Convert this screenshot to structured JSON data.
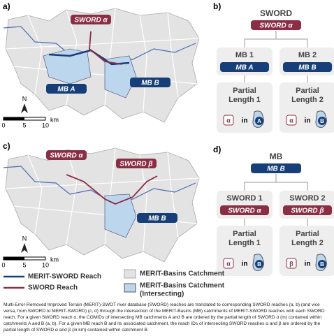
{
  "panels": {
    "a": {
      "label": "a)",
      "labels": [
        {
          "text": "SWORD α",
          "kind": "sword"
        },
        {
          "text": "MB A",
          "kind": "mb"
        },
        {
          "text": "MB B",
          "kind": "mb"
        }
      ],
      "north": "N",
      "scale": [
        "0",
        "5",
        "10"
      ],
      "unit": "km"
    },
    "b": {
      "label": "b)",
      "root": {
        "title": "SWORD",
        "tag": "SWORD α",
        "kind": "sword"
      },
      "children": [
        {
          "title": "MB 1",
          "tag": "MB A",
          "kind": "mb",
          "result": [
            "Partial",
            "Length 1"
          ],
          "icon": "α",
          "in": "in",
          "target": "A"
        },
        {
          "title": "MB 2",
          "tag": "MB B",
          "kind": "mb",
          "result": [
            "Partial",
            "Length 2"
          ],
          "icon": "α",
          "in": "in",
          "target": "B"
        }
      ]
    },
    "c": {
      "label": "c)",
      "labels": [
        {
          "text": "SWORD α",
          "kind": "sword"
        },
        {
          "text": "SWORD β",
          "kind": "sword"
        },
        {
          "text": "MB B",
          "kind": "mb"
        }
      ],
      "north": "N",
      "scale": [
        "0",
        "5",
        "10"
      ],
      "unit": "km"
    },
    "d": {
      "label": "d)",
      "root": {
        "title": "MB",
        "tag": "MB B",
        "kind": "mb"
      },
      "children": [
        {
          "title": "SWORD 1",
          "tag": "SWORD α",
          "kind": "sword",
          "result": [
            "Partial",
            "Length 1"
          ],
          "icon": "α",
          "in": "in",
          "target": "B"
        },
        {
          "title": "SWORD 2",
          "tag": "SWORD β",
          "kind": "sword",
          "result": [
            "Partial",
            "Length 2"
          ],
          "icon": "β",
          "in": "in",
          "target": "B"
        }
      ]
    }
  },
  "legend": [
    {
      "text": "MERIT-SWORD Reach"
    },
    {
      "text": "SWORD Reach"
    },
    {
      "text": "MERIT-Basins Catchment"
    },
    {
      "text": "MERIT-Basins Catchment",
      "sub": "(Intersecting)"
    }
  ],
  "caption": "Multi-Error-Removed Improved Terrain (MERIT)-SWOT river database (SWORD) reaches are translated to corresponding SWORD reaches (a, b) (and vice versa, from SWORD to MERIT-SWORD) (c, d) through the intersection of the MERIT-Basins (MB) catchments of MERIT-SWORD reaches with each SWORD reach. For a given SWORD reach α, the COMIDs of intersecting MB catchments A and B are ordered by the partial length of SWORD α (m) contained within catchments A and B (a, b). For a given MB reach B and its associated catchment, the reach IDs of intersecting SWORD reaches α and β are ordered by the partial length of SWORD α and β (in km) contained within catchment B."
}
